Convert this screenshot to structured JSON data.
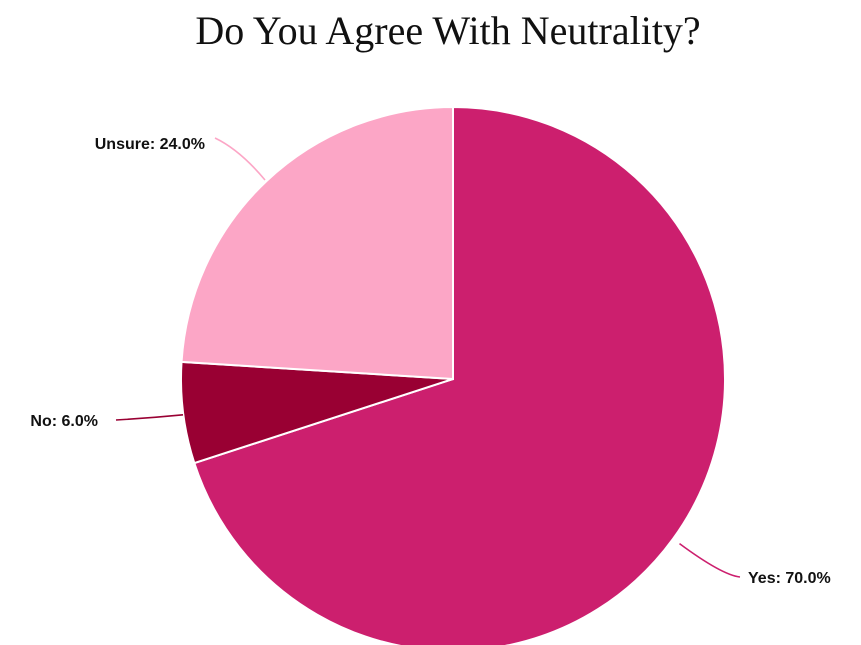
{
  "chart_data": {
    "type": "pie",
    "title": "Do You Agree With Neutrality?",
    "slices": [
      {
        "label": "Yes",
        "value": 70.0,
        "display": "Yes: 70.0%",
        "color": "#cc1f6e"
      },
      {
        "label": "No",
        "value": 6.0,
        "display": "No: 6.0%",
        "color": "#990033"
      },
      {
        "label": "Unsure",
        "value": 24.0,
        "display": "Unsure: 24.0%",
        "color": "#fca6c6"
      }
    ],
    "start_angle": "12 o'clock",
    "direction": "clockwise",
    "legend": "none",
    "slice_border_color": "#ffffff",
    "leader_line_colors": [
      "#cc1f6e",
      "#990033",
      "#fca6c6"
    ]
  }
}
